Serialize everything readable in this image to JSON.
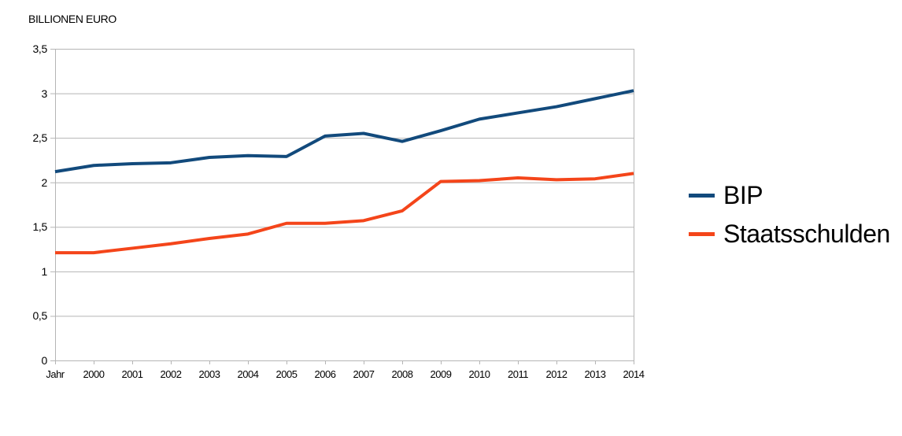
{
  "chart_data": {
    "type": "line",
    "title": "BILLIONEN EURO",
    "categories": [
      "Jahr",
      "2000",
      "2001",
      "2002",
      "2003",
      "2004",
      "2005",
      "2006",
      "2007",
      "2008",
      "2009",
      "2010",
      "2011",
      "2012",
      "2013",
      "2014"
    ],
    "series": [
      {
        "name": "BIP",
        "color": "#124a7c",
        "values": [
          2.12,
          2.19,
          2.21,
          2.22,
          2.28,
          2.3,
          2.29,
          2.52,
          2.55,
          2.46,
          2.58,
          2.71,
          2.78,
          2.85,
          2.94,
          3.03
        ]
      },
      {
        "name": "Staatsschulden",
        "color": "#f4451a",
        "values": [
          1.21,
          1.21,
          1.26,
          1.31,
          1.37,
          1.42,
          1.54,
          1.54,
          1.57,
          1.68,
          2.01,
          2.02,
          2.05,
          2.03,
          2.04,
          2.1
        ]
      }
    ],
    "y_ticks": [
      {
        "value": 0,
        "label": "0"
      },
      {
        "value": 0.5,
        "label": "0,5"
      },
      {
        "value": 1,
        "label": "1"
      },
      {
        "value": 1.5,
        "label": "1,5"
      },
      {
        "value": 2,
        "label": "2"
      },
      {
        "value": 2.5,
        "label": "2,5"
      },
      {
        "value": 3,
        "label": "3"
      },
      {
        "value": 3.5,
        "label": "3,5"
      }
    ],
    "ylim": [
      0,
      3.5
    ],
    "xlabel": "",
    "ylabel": "",
    "grid": true,
    "grid_color": "#b5b5b5",
    "text_color": "#000000",
    "background_color": "#ffffff",
    "legend_position": "right"
  }
}
